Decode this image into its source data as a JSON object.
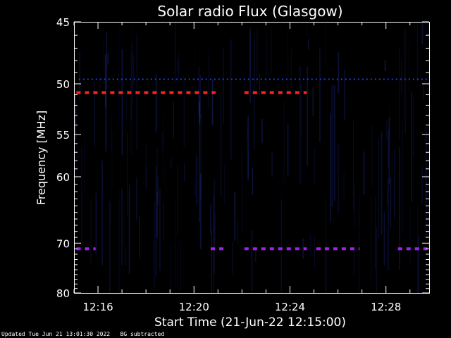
{
  "chart_data": {
    "type": "heatmap",
    "title": "Solar radio Flux (Glasgow)",
    "xlabel": "Start Time (21-Jun-22 12:15:00)",
    "ylabel": "Frequency [MHz]",
    "x_unit": "minutes after 12:15:00",
    "xlim": [
      0,
      14.8
    ],
    "ylim": [
      45,
      80
    ],
    "y_scale": "reciprocal",
    "y_ticks": [
      45,
      50,
      55,
      60,
      70,
      80
    ],
    "x_ticks": [
      {
        "label": "12:16",
        "minute": 1
      },
      {
        "label": "12:20",
        "minute": 5
      },
      {
        "label": "12:24",
        "minute": 9
      },
      {
        "label": "12:28",
        "minute": 13
      }
    ],
    "background_color": "#000000",
    "bands": [
      {
        "freq_mhz": 49.6,
        "color": "#1a3cff",
        "segments": [
          [
            0.2,
            14.8
          ]
        ],
        "style": "dotted"
      },
      {
        "freq_mhz": 50.8,
        "color": "#ff2020",
        "segments": [
          [
            0.1,
            5.9
          ],
          [
            7.1,
            9.7
          ]
        ],
        "style": "dashed"
      },
      {
        "freq_mhz": 71.0,
        "color": "#a020f0",
        "segments": [
          [
            0.1,
            0.9
          ],
          [
            5.7,
            6.3
          ],
          [
            7.1,
            9.7
          ],
          [
            10.1,
            11.9
          ],
          [
            13.5,
            14.8
          ]
        ],
        "style": "dashed"
      }
    ]
  },
  "footer": {
    "updated": "Updated Tue Jun 21 13:01:30 2022",
    "note": "BG subtracted"
  }
}
